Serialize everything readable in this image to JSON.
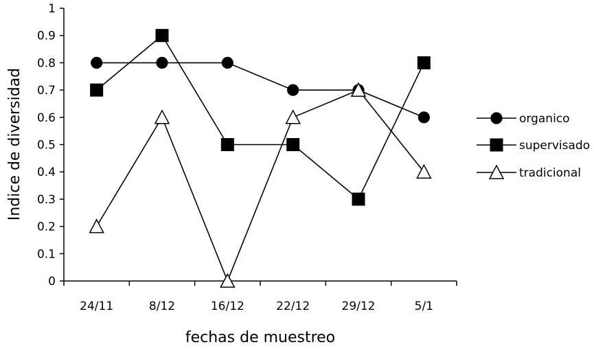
{
  "chart_data": {
    "type": "line",
    "title": "",
    "xlabel": "fechas de muestreo",
    "ylabel": "Indice de diversidad",
    "categories": [
      "24/11",
      "8/12",
      "16/12",
      "22/12",
      "29/12",
      "5/1"
    ],
    "yticks": [
      "0",
      "0.1",
      "0.2",
      "0.3",
      "0.4",
      "0.5",
      "0.6",
      "0.7",
      "0.8",
      "0.9",
      "1"
    ],
    "ylim": [
      0,
      1
    ],
    "grid": false,
    "legend_position": "right",
    "series": [
      {
        "name": "organico",
        "marker": "circle-filled",
        "color": "#000000",
        "values": [
          0.8,
          0.8,
          0.8,
          0.7,
          0.7,
          0.6
        ]
      },
      {
        "name": "supervisado",
        "marker": "square-filled",
        "color": "#000000",
        "values": [
          0.7,
          0.9,
          0.5,
          0.5,
          0.3,
          0.8
        ]
      },
      {
        "name": "tradicional",
        "marker": "triangle-open",
        "color": "#000000",
        "values": [
          0.2,
          0.6,
          0.0,
          0.6,
          0.7,
          0.4
        ]
      }
    ]
  }
}
